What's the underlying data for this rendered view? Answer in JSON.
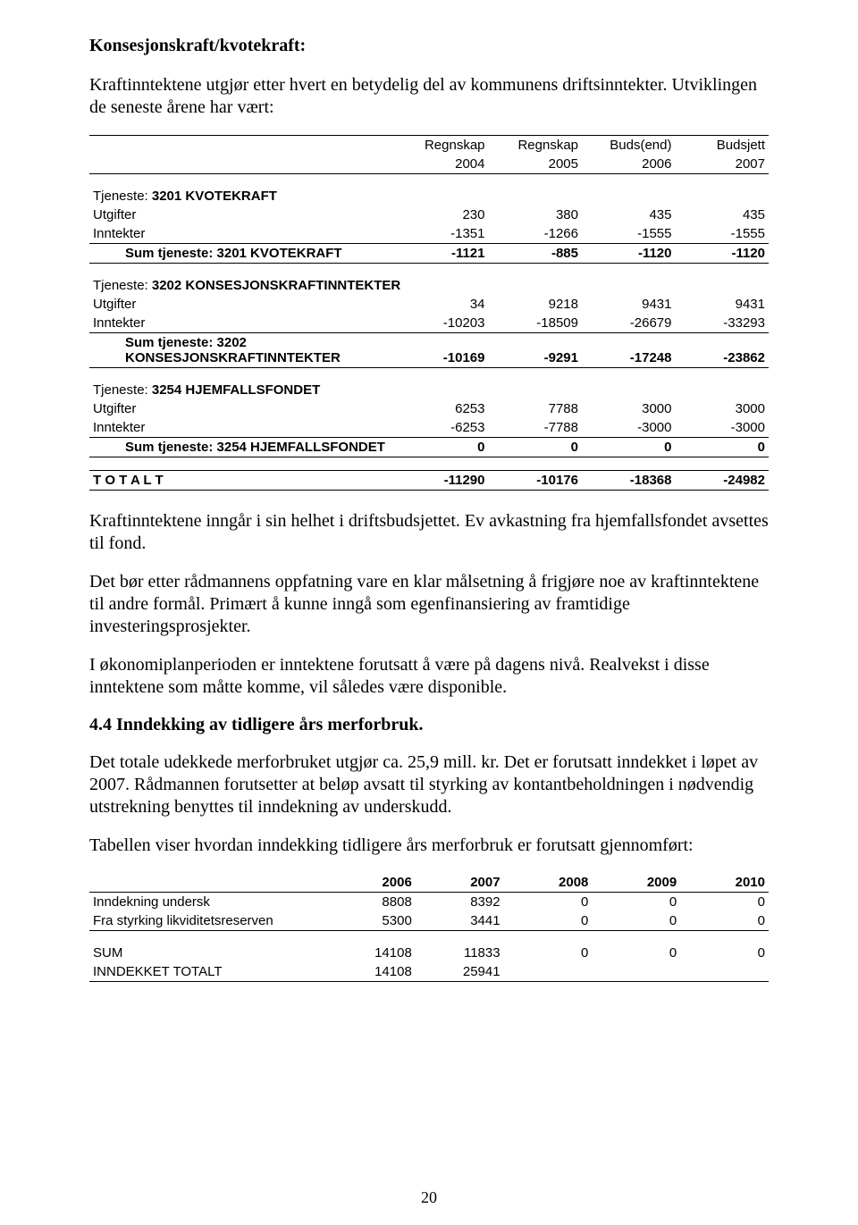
{
  "title": "Konsesjonskraft/kvotekraft:",
  "intro": "Kraftinntektene utgjør etter hvert en betydelig del av kommunens driftsinntekter. Utviklingen de seneste årene har vært:",
  "table1": {
    "header_labels": [
      "Regnskap",
      "Regnskap",
      "Buds(end)",
      "Budsjett"
    ],
    "header_years": [
      "2004",
      "2005",
      "2006",
      "2007"
    ],
    "groups": [
      {
        "tjeneste_label": "Tjeneste:",
        "tjeneste_name": "3201 KVOTEKRAFT",
        "rows": [
          {
            "label": "Utgifter",
            "v": [
              "230",
              "380",
              "435",
              "435"
            ]
          },
          {
            "label": "Inntekter",
            "v": [
              "-1351",
              "-1266",
              "-1555",
              "-1555"
            ]
          }
        ],
        "sum": {
          "label": "Sum tjeneste: 3201 KVOTEKRAFT",
          "v": [
            "-1121",
            "-885",
            "-1120",
            "-1120"
          ]
        }
      },
      {
        "tjeneste_label": "Tjeneste:",
        "tjeneste_name": "3202 KONSESJONSKRAFTINNTEKTER",
        "rows": [
          {
            "label": "Utgifter",
            "v": [
              "34",
              "9218",
              "9431",
              "9431"
            ]
          },
          {
            "label": "Inntekter",
            "v": [
              "-10203",
              "-18509",
              "-26679",
              "-33293"
            ]
          }
        ],
        "sum": {
          "label": "Sum tjeneste: 3202 KONSESJONSKRAFTINNTEKTER",
          "v": [
            "-10169",
            "-9291",
            "-17248",
            "-23862"
          ]
        }
      },
      {
        "tjeneste_label": "Tjeneste:",
        "tjeneste_name": "3254 HJEMFALLSFONDET",
        "rows": [
          {
            "label": "Utgifter",
            "v": [
              "6253",
              "7788",
              "3000",
              "3000"
            ]
          },
          {
            "label": "Inntekter",
            "v": [
              "-6253",
              "-7788",
              "-3000",
              "-3000"
            ]
          }
        ],
        "sum": {
          "label": "Sum tjeneste: 3254 HJEMFALLSFONDET",
          "v": [
            "0",
            "0",
            "0",
            "0"
          ]
        }
      }
    ],
    "total": {
      "label": "T O T A L T",
      "v": [
        "-11290",
        "-10176",
        "-18368",
        "-24982"
      ]
    }
  },
  "paragraphs": [
    "Kraftinntektene inngår i sin helhet i driftsbudsjettet. Ev avkastning fra hjemfallsfondet avsettes til fond.",
    "Det bør etter rådmannens oppfatning vare en klar målsetning å frigjøre noe av kraftinntektene til andre formål. Primært å kunne inngå som egenfinansiering av framtidige investeringsprosjekter.",
    "I økonomiplanperioden er inntektene forutsatt å være på dagens nivå. Realvekst i disse inntektene som måtte komme, vil således være disponible."
  ],
  "section_heading": "4.4  Inndekking av tidligere års merforbruk.",
  "post_section_paragraphs": [
    "Det totale udekkede merforbruket utgjør ca. 25,9 mill. kr. Det er forutsatt inndekket i løpet av 2007. Rådmannen forutsetter at beløp avsatt til styrking av kontantbeholdningen i nødvendig utstrekning benyttes til inndekning av underskudd.",
    "Tabellen viser hvordan inndekking tidligere års merforbruk er forutsatt gjennomført:"
  ],
  "table2": {
    "header_years": [
      "2006",
      "2007",
      "2008",
      "2009",
      "2010"
    ],
    "rows": [
      {
        "label": "Inndekning undersk",
        "v": [
          "8808",
          "8392",
          "0",
          "0",
          "0"
        ]
      },
      {
        "label": "Fra styrking likviditetsreserven",
        "v": [
          "5300",
          "3441",
          "0",
          "0",
          "0"
        ]
      }
    ],
    "sums": [
      {
        "label": "SUM",
        "v": [
          "14108",
          "11833",
          "0",
          "0",
          "0"
        ]
      },
      {
        "label": "INNDEKKET TOTALT",
        "v": [
          "14108",
          "25941",
          "",
          "",
          ""
        ]
      }
    ]
  },
  "page_number": "20"
}
